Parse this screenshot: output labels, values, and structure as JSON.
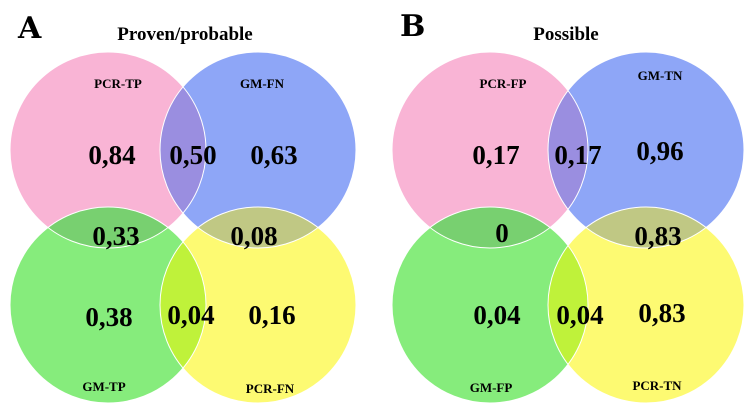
{
  "colors": {
    "pink": "#f9b4d5",
    "blue": "#8ea6f7",
    "green": "#86ec7c",
    "yellow": "#fdfa72",
    "pink_blue": "#9a8ee0",
    "pink_green": "#78d070",
    "blue_yellow": "#c0c884",
    "green_yellow": "#bff23a",
    "outline": "#ffffff"
  },
  "panels": [
    {
      "letter": "A",
      "title": "Proven/probable",
      "sets": {
        "top_left": "PCR-TP",
        "top_right": "GM-FN",
        "bottom_left": "GM-TP",
        "bottom_right": "PCR-FN"
      },
      "values": {
        "top_left": "0,84",
        "top_overlap": "0,50",
        "top_right": "0,63",
        "left_overlap": "0,33",
        "right_overlap": "0,08",
        "bottom_left": "0,38",
        "bottom_overlap": "0,04",
        "bottom_right": "0,16"
      }
    },
    {
      "letter": "B",
      "title": "Possible",
      "sets": {
        "top_left": "PCR-FP",
        "top_right": "GM-TN",
        "bottom_left": "GM-FP",
        "bottom_right": "PCR-TN"
      },
      "values": {
        "top_left": "0,17",
        "top_overlap": "0,17",
        "top_right": "0,96",
        "left_overlap": "0",
        "right_overlap": "0,83",
        "bottom_left": "0,04",
        "bottom_overlap": "0,04",
        "bottom_right": "0,83"
      }
    }
  ]
}
